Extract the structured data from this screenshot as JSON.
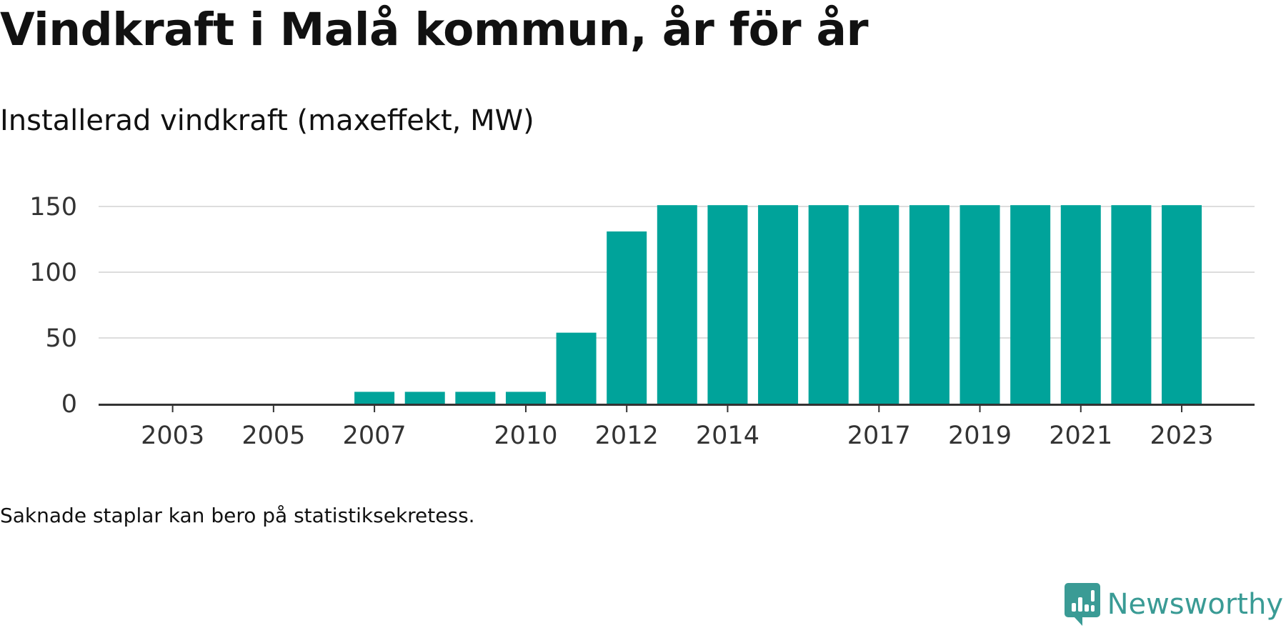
{
  "title": "Vindkraft i Malå kommun, år för år",
  "subtitle": "Installerad vindkraft (maxeffekt, MW)",
  "footnote": "Saknade staplar kan bero på statistiksekretess.",
  "brand": {
    "name": "Newsworthy",
    "logo_icon": "newsworthy-logo-icon",
    "color": "#3a9b95"
  },
  "colors": {
    "bar": "#00a39a",
    "grid": "#dddddd",
    "axis": "#333333"
  },
  "chart_data": {
    "type": "bar",
    "x": [
      2002,
      2003,
      2004,
      2005,
      2006,
      2007,
      2008,
      2009,
      2010,
      2011,
      2012,
      2013,
      2014,
      2015,
      2016,
      2017,
      2018,
      2019,
      2020,
      2021,
      2022,
      2023
    ],
    "values": [
      null,
      null,
      null,
      null,
      null,
      9,
      9,
      9,
      9,
      54,
      131,
      151,
      151,
      151,
      151,
      151,
      151,
      151,
      151,
      151,
      151,
      151
    ],
    "xticks": [
      "2003",
      "2005",
      "2007",
      "2010",
      "2012",
      "2014",
      "2017",
      "2019",
      "2021",
      "2023"
    ],
    "yticks": [
      "0",
      "50",
      "100",
      "150"
    ],
    "ylim": [
      0,
      150
    ],
    "xlabel": "",
    "ylabel": "",
    "grid": true,
    "legend": "none"
  }
}
